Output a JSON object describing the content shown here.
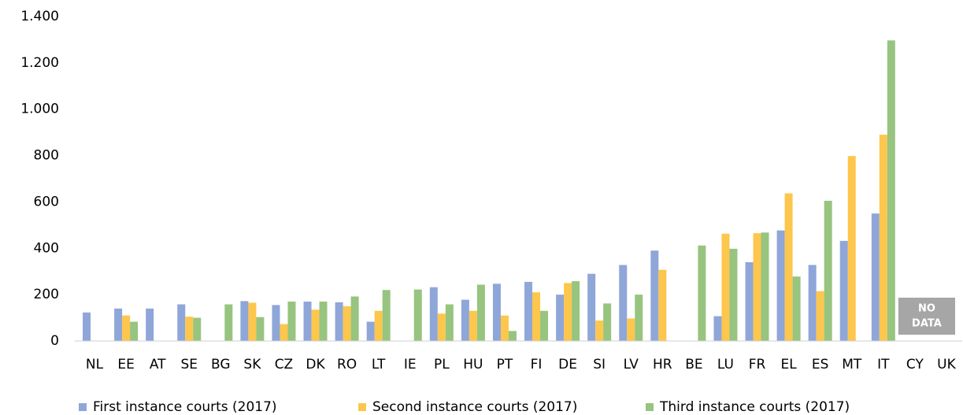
{
  "chart_data": {
    "type": "bar",
    "categories": [
      "NL",
      "EE",
      "AT",
      "SE",
      "BG",
      "SK",
      "CZ",
      "DK",
      "RO",
      "LT",
      "IE",
      "PL",
      "HU",
      "PT",
      "FI",
      "DE",
      "SI",
      "LV",
      "HR",
      "BE",
      "LU",
      "FR",
      "EL",
      "ES",
      "MT",
      "IT",
      "CY",
      "UK"
    ],
    "series": [
      {
        "name": "First instance courts (2017)",
        "color": "#8fa6d9",
        "values": [
          123,
          140,
          140,
          158,
          null,
          172,
          155,
          170,
          167,
          83,
          null,
          232,
          178,
          247,
          255,
          200,
          290,
          328,
          390,
          null,
          107,
          340,
          477,
          328,
          432,
          550,
          null,
          null
        ]
      },
      {
        "name": "Second instance courts (2017)",
        "color": "#fdc64c",
        "values": [
          null,
          110,
          null,
          105,
          null,
          165,
          73,
          135,
          150,
          130,
          null,
          118,
          130,
          110,
          210,
          250,
          88,
          97,
          307,
          null,
          463,
          465,
          637,
          215,
          798,
          890,
          null,
          null
        ]
      },
      {
        "name": "Third instance courts (2017)",
        "color": "#97c47f",
        "values": [
          null,
          83,
          null,
          100,
          158,
          103,
          170,
          170,
          192,
          220,
          222,
          158,
          243,
          43,
          130,
          258,
          162,
          200,
          null,
          412,
          398,
          468,
          278,
          605,
          null,
          1297,
          null,
          null
        ]
      }
    ],
    "ylim": [
      0,
      1400
    ],
    "yticks": [
      0,
      200,
      400,
      600,
      800,
      {
        "value": 1000,
        "label": "1.000"
      },
      {
        "value": 1200,
        "label": "1.200"
      },
      {
        "value": 1400,
        "label": "1.400"
      }
    ],
    "grid": false,
    "legend": "bottom",
    "annotation": [
      "NO",
      "DATA"
    ]
  }
}
